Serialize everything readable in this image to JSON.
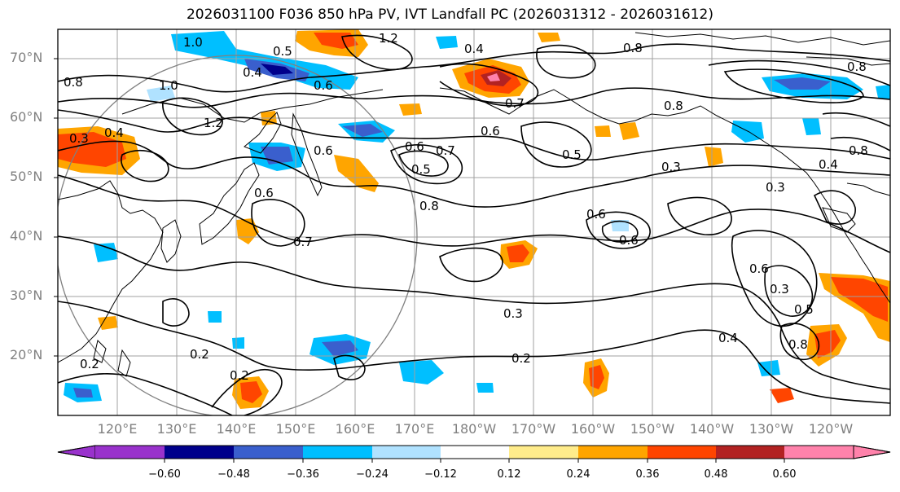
{
  "title": "2026031100 F036 850 hPa PV, IVT Landfall PC (2026031312 - 2026031612)",
  "map": {
    "lat_labels": [
      "70°N",
      "60°N",
      "50°N",
      "40°N",
      "30°N",
      "20°N"
    ],
    "lon_labels": [
      "120°E",
      "130°E",
      "140°E",
      "150°E",
      "160°E",
      "170°E",
      "180°W",
      "170°W",
      "160°W",
      "150°W",
      "140°W",
      "130°W",
      "120°W"
    ],
    "contour_labels": [
      "1.0",
      "1.2",
      "0.5",
      "0.4",
      "0.6",
      "0.8",
      "0.8",
      "0.4",
      "0.7",
      "0.6",
      "0.6",
      "1.2",
      "0.3",
      "0.4",
      "0.6",
      "0.5",
      "0.5",
      "0.8",
      "0.6",
      "0.7",
      "0.8",
      "0.6",
      "0.8",
      "0.3",
      "0.8",
      "0.4",
      "0.3",
      "0.7",
      "0.2",
      "0.3",
      "0.2",
      "0.2",
      "0.2",
      "0.6",
      "0.3",
      "0.5",
      "0.4",
      "0.8",
      "1.0",
      "0.6"
    ],
    "colors": {
      "frame": "#000000",
      "grid": "#a0a0a0",
      "contour": "#000000",
      "coast": "#000000"
    }
  },
  "colorbar": {
    "bins": [
      {
        "color": "#9932CC"
      },
      {
        "color": "#00008B"
      },
      {
        "color": "#3A5FCD"
      },
      {
        "color": "#00BFFF"
      },
      {
        "color": "#B0E2FF"
      },
      {
        "color": "#FFFFFF"
      },
      {
        "color": "#FFEC8B"
      },
      {
        "color": "#FFA500"
      },
      {
        "color": "#FF4500"
      },
      {
        "color": "#B22222"
      },
      {
        "color": "#FF82AB"
      }
    ],
    "tick_labels": [
      "−0.60",
      "−0.48",
      "−0.36",
      "−0.24",
      "−0.12",
      "0.12",
      "0.24",
      "0.36",
      "0.48",
      "0.60"
    ]
  }
}
